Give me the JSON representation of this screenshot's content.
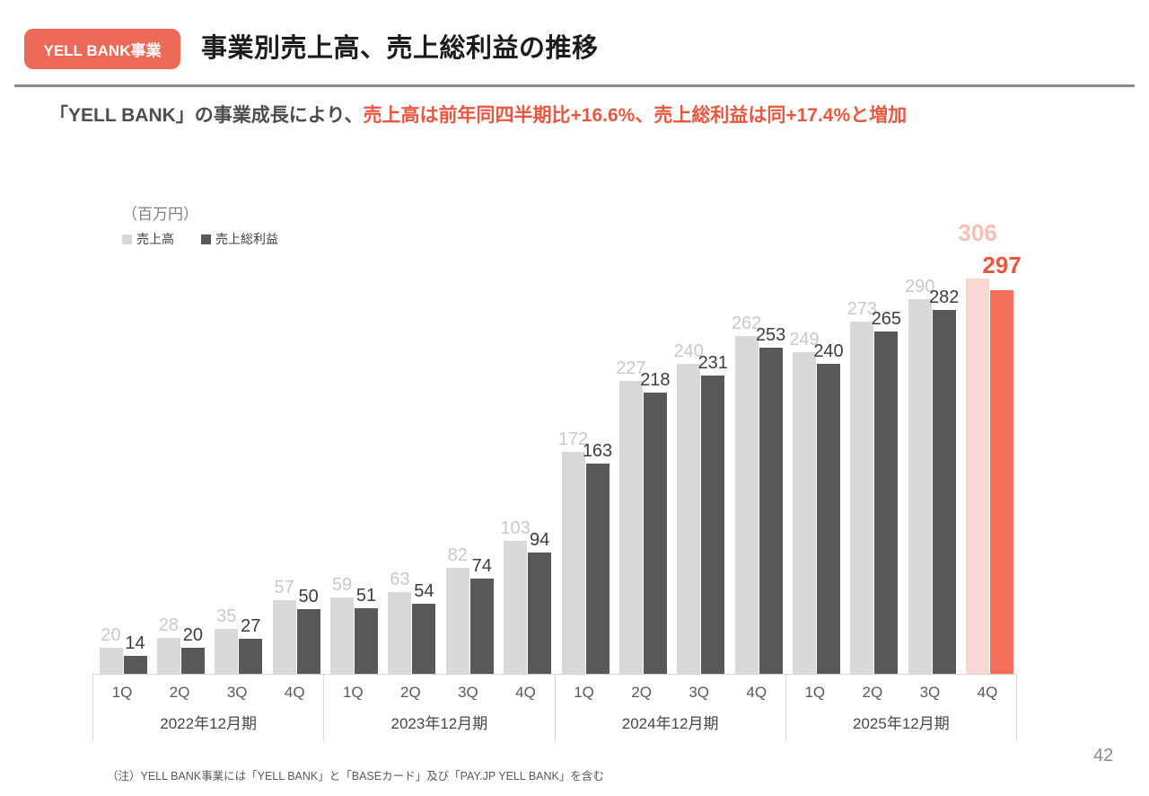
{
  "header": {
    "badge": "YELL BANK事業",
    "title": "事業別売上高、売上総利益の推移"
  },
  "subtitle": {
    "normal": "「YELL BANK」の事業成長により、",
    "highlight": "売上高は前年同四半期比+16.6%、売上総利益は同+17.4%と増加"
  },
  "colors": {
    "accent": "#ee6a58",
    "highlight_text": "#e8573f"
  },
  "chart_data": {
    "type": "bar",
    "title": "事業別売上高、売上総利益の推移（YELL BANK事業）",
    "unit_label": "（百万円）",
    "quarters": [
      "1Q",
      "2Q",
      "3Q",
      "4Q"
    ],
    "year_groups": [
      "2022年12月期",
      "2023年12月期",
      "2024年12月期",
      "2025年12月期"
    ],
    "series": [
      {
        "name": "売上高",
        "color": "#d9d9d9",
        "label_color": "#c9c9c9",
        "values": [
          20,
          28,
          35,
          57,
          59,
          63,
          82,
          103,
          172,
          227,
          240,
          262,
          249,
          273,
          290,
          306
        ]
      },
      {
        "name": "売上総利益",
        "color": "#595959",
        "label_color": "#3d3d3d",
        "values": [
          14,
          20,
          27,
          50,
          51,
          54,
          74,
          94,
          163,
          218,
          231,
          253,
          240,
          265,
          282,
          297
        ]
      }
    ],
    "highlight": {
      "index": 15,
      "bar_colors": [
        "#f9d8d1",
        "#f4705a"
      ],
      "label_colors": [
        "#f6c0b4",
        "#e8573f"
      ]
    },
    "ylim": [
      0,
      355
    ],
    "grid": false,
    "legend_position": "top-left"
  },
  "footnote": "（注）YELL BANK事業には「YELL BANK」と「BASEカード」及び「PAY.JP YELL BANK」を含む",
  "page_number": "42"
}
